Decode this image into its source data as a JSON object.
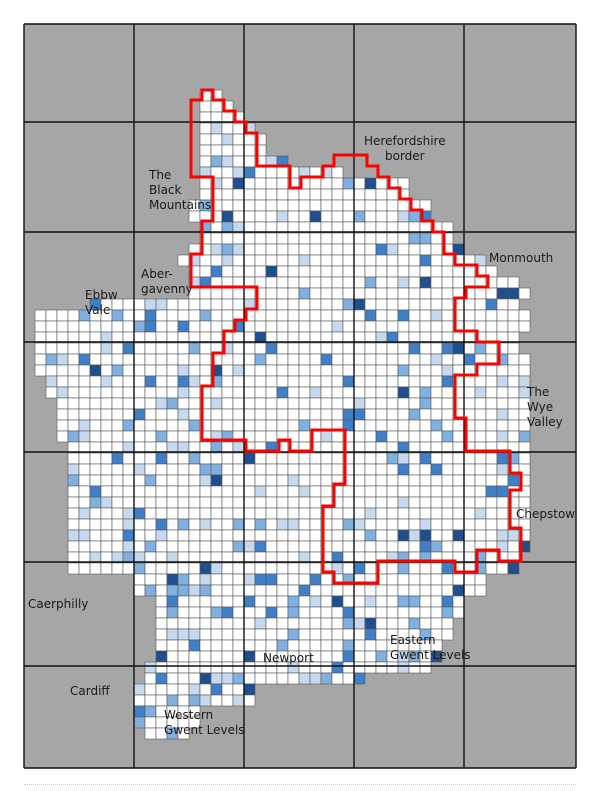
{
  "labels": {
    "herefordshire": "Herefordshire\nborder",
    "black_mountains": "The\nBlack\nMountains",
    "abergavenny": "Aber-\ngavenny",
    "ebbw_vale": "Ebbw\nVale",
    "monmouth": "Monmouth",
    "wye_valley": "The\nWye\nValley",
    "chepstow": "Chepstow",
    "caerphilly": "Caerphilly",
    "newport": "Newport",
    "eastern_gwent_levels": "Eastern\nGwent Levels",
    "cardiff": "Cardiff",
    "western_gwent_levels": "Western\nGwent Levels"
  },
  "colors": {
    "outside": "#a6a6a6",
    "empty_cell": "#ffffff",
    "cell_border": "#555555",
    "grid_major": "#111111",
    "boundary": "#ff0000",
    "shade_1": "#c6d9ef",
    "shade_2": "#7fb0e0",
    "shade_3": "#3f7fc8",
    "shade_4": "#1f4f8f"
  }
}
